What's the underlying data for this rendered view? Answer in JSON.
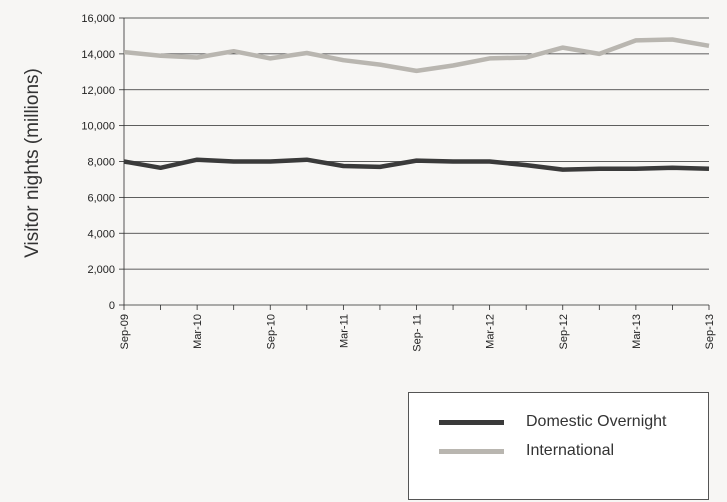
{
  "chart_data": {
    "type": "line",
    "ylabel": "Visitor nights (millions)",
    "ylim": [
      0,
      16000
    ],
    "yticks": [
      0,
      2000,
      4000,
      6000,
      8000,
      10000,
      12000,
      14000,
      16000
    ],
    "ytick_labels": [
      "0",
      "2,000",
      "4,000",
      "6,000",
      "8,000",
      "10,000",
      "12,000",
      "14,000",
      "16,000"
    ],
    "x_labels": [
      "Sep-09",
      "Mar-10",
      "Sep-10",
      "Mar-11",
      "Sep- 11",
      "Mar-12",
      "Sep-12",
      "Mar-13",
      "Sep-13"
    ],
    "x_label_every": 2,
    "grid": "horizontal",
    "legend_position": "bottom-right",
    "series": [
      {
        "name": "Domestic Overnight",
        "color": "#3a3a3a",
        "values": [
          8000,
          7650,
          8100,
          8000,
          8000,
          8100,
          7750,
          7700,
          8050,
          8000,
          8000,
          7800,
          7550,
          7600,
          7600,
          7650,
          7600
        ]
      },
      {
        "name": "International",
        "color": "#b9b6b0",
        "values": [
          14100,
          13900,
          13800,
          14150,
          13750,
          14050,
          13650,
          13400,
          13050,
          13350,
          13750,
          13800,
          14350,
          14000,
          14750,
          14800,
          14450
        ]
      }
    ]
  }
}
